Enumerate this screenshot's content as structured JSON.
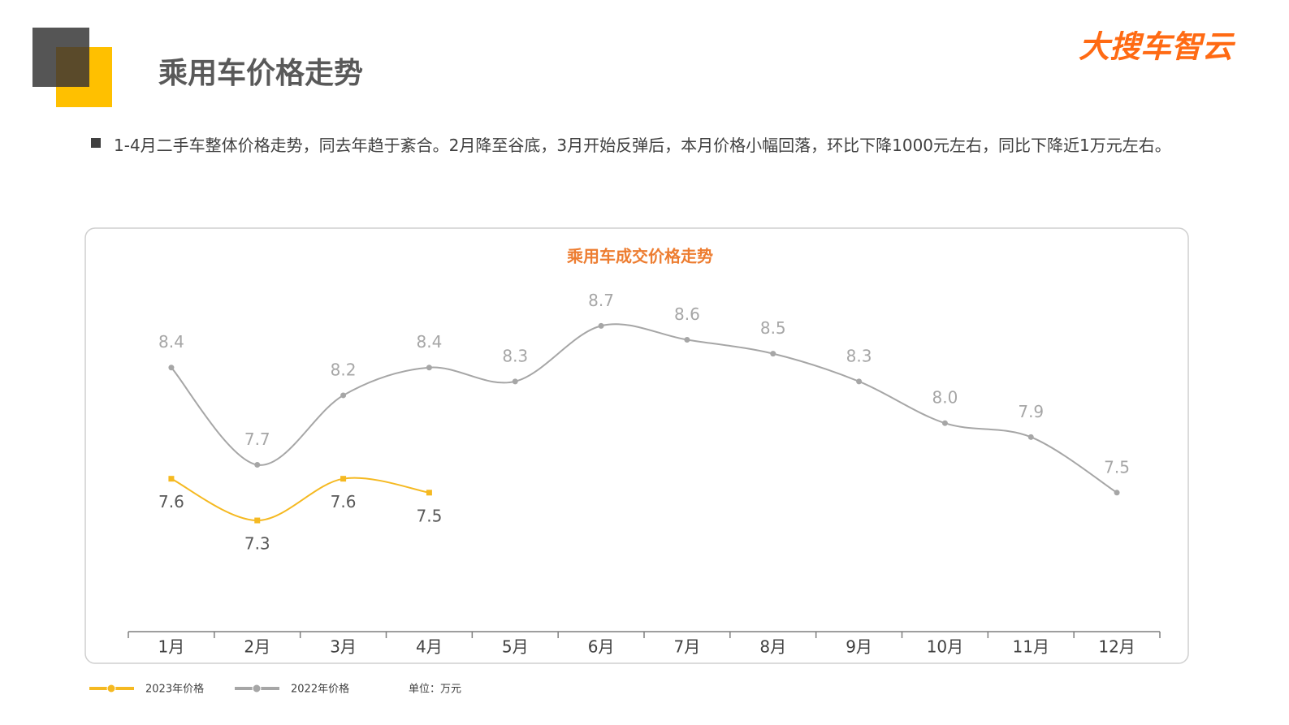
{
  "header": {
    "title": "乘用车价格走势",
    "logo": "大搜车智云",
    "bullet": "1-4月二手车整体价格走势，同去年趋于紊合。2月降至谷底，3月开始反弹后，本月价格小幅回落，环比下降1000元左右，同比下降近1万元左右。"
  },
  "chart_data": {
    "type": "line",
    "title": "乘用车成交价格走势",
    "categories": [
      "1月",
      "2月",
      "3月",
      "4月",
      "5月",
      "6月",
      "7月",
      "8月",
      "9月",
      "10月",
      "11月",
      "12月"
    ],
    "series": [
      {
        "name": "2023年价格",
        "color": "#f5b921",
        "marker": "square",
        "values": [
          7.6,
          7.3,
          7.6,
          7.5,
          null,
          null,
          null,
          null,
          null,
          null,
          null,
          null
        ]
      },
      {
        "name": "2022年价格",
        "color": "#a6a6a6",
        "marker": "circle",
        "values": [
          8.4,
          7.7,
          8.2,
          8.4,
          8.3,
          8.7,
          8.6,
          8.5,
          8.3,
          8.0,
          7.9,
          7.5
        ],
        "value_labels": [
          "8.4",
          "7.7",
          "8.2",
          "8.4",
          "8.3",
          "8.7",
          "8.6",
          "8.5",
          "8.3",
          "8.0",
          "7.9",
          "7.5"
        ]
      }
    ],
    "ylim": [
      6.5,
      9.0
    ],
    "unit_note": "单位：万元"
  }
}
